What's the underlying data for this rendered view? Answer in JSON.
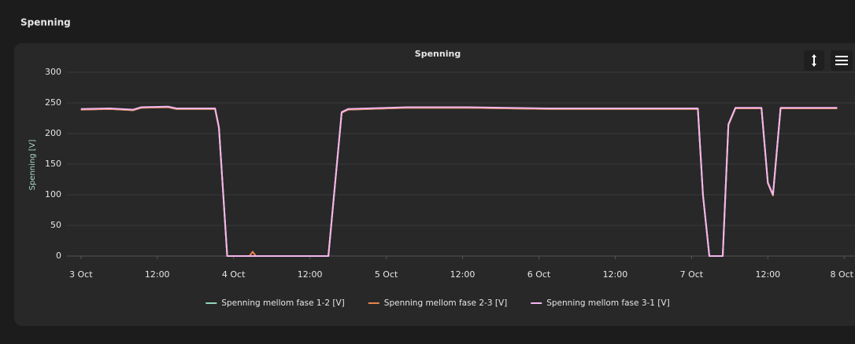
{
  "header": {
    "title": "Spenning"
  },
  "chart_data": {
    "type": "line",
    "title": "Spenning",
    "y_label": "Spenning [V]",
    "x": [
      0,
      4.5,
      8.2,
      9.5,
      13.7,
      15,
      21.1,
      21.7,
      23,
      26.5,
      27,
      27.5,
      38.9,
      41,
      42,
      51.2,
      61,
      73.3,
      97,
      97.8,
      98.8,
      100.9,
      101.8,
      102.9,
      107,
      108,
      108.8,
      110,
      118.9
    ],
    "series": [
      {
        "name": "Spenning mellom fase 1-2 [V]",
        "color": "#8fd6b8",
        "values": [
          239,
          240,
          238,
          242,
          243,
          240,
          240,
          209,
          0,
          0,
          0,
          0,
          0,
          234,
          239,
          242,
          242,
          240,
          240,
          99,
          0,
          0,
          214,
          241,
          241,
          119,
          99,
          241,
          241
        ]
      },
      {
        "name": "Spenning mellom fase 2-3 [V]",
        "color": "#e8834e",
        "values": [
          239,
          240,
          238,
          242,
          243,
          240,
          240,
          209,
          0,
          0,
          7,
          0,
          0,
          234,
          239,
          242,
          242,
          240,
          240,
          99,
          0,
          0,
          214,
          241,
          241,
          119,
          99,
          241,
          241
        ]
      },
      {
        "name": "Spenning mellom fase 3-1 [V]",
        "color": "#f4b6ef",
        "values": [
          240,
          241,
          239,
          243,
          244,
          241,
          241,
          210,
          0,
          0,
          0,
          0,
          0,
          235,
          240,
          243,
          243,
          241,
          241,
          100,
          0,
          0,
          215,
          242,
          242,
          120,
          100,
          242,
          242
        ]
      }
    ],
    "xlim": [
      -2.2,
      121.7
    ],
    "xticks": [
      {
        "value": 0,
        "label": "3 Oct"
      },
      {
        "value": 12,
        "label": "12:00"
      },
      {
        "value": 24,
        "label": "4 Oct"
      },
      {
        "value": 36,
        "label": "12:00"
      },
      {
        "value": 48,
        "label": "5 Oct"
      },
      {
        "value": 60,
        "label": "12:00"
      },
      {
        "value": 72,
        "label": "6 Oct"
      },
      {
        "value": 84,
        "label": "12:00"
      },
      {
        "value": 96,
        "label": "7 Oct"
      },
      {
        "value": 108,
        "label": "12:00"
      },
      {
        "value": 120,
        "label": "8 Oct"
      }
    ],
    "ylim": [
      0,
      300
    ],
    "yticks": [
      0,
      50,
      100,
      150,
      200,
      250,
      300
    ],
    "grid": true,
    "legend": "bottom"
  }
}
